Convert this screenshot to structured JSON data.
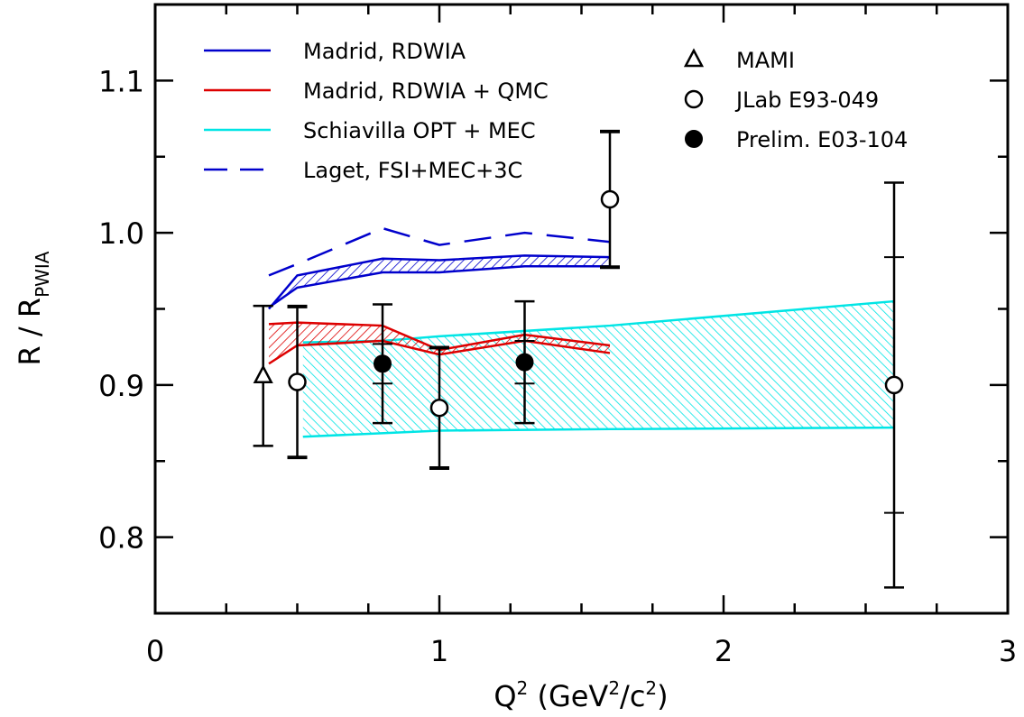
{
  "chart_data": {
    "type": "scatter",
    "xlabel": {
      "base": "Q",
      "sup": "2",
      "paren_open": " (GeV",
      "unit_sup": "2",
      "slash": "/c",
      "unit_sup2": "2",
      "paren_close": ")"
    },
    "ylabel": {
      "left": "R  /  R",
      "sub": "PWIA"
    },
    "xlim": [
      0,
      3
    ],
    "ylim": [
      0.75,
      1.15
    ],
    "x_ticks": [
      "0",
      "1",
      "2",
      "3"
    ],
    "y_ticks": [
      "0.8",
      "0.9",
      "1.0",
      "1.1"
    ],
    "legend_lines": [
      {
        "label": "Madrid,  RDWIA",
        "color": "#0000cc",
        "style": "solid"
      },
      {
        "label": "Madrid,  RDWIA + QMC",
        "color": "#dd0000",
        "style": "solid"
      },
      {
        "label": "Schiavilla  OPT + MEC",
        "color": "#00e5e5",
        "style": "solid"
      },
      {
        "label": "Laget,  FSI+MEC+3C",
        "color": "#0000cc",
        "style": "dashed"
      }
    ],
    "legend_markers": [
      {
        "label": "MAMI",
        "marker": "triangle-open"
      },
      {
        "label": "JLab  E93-049",
        "marker": "circle-open"
      },
      {
        "label": "Prelim.  E03-104",
        "marker": "circle-filled"
      }
    ],
    "bands": [
      {
        "name": "Madrid, RDWIA",
        "color": "#0000cc",
        "upper": [
          [
            0.4,
            0.95
          ],
          [
            0.5,
            0.972
          ],
          [
            0.8,
            0.983
          ],
          [
            1.0,
            0.982
          ],
          [
            1.3,
            0.985
          ],
          [
            1.6,
            0.984
          ]
        ],
        "lower": [
          [
            0.4,
            0.951
          ],
          [
            0.5,
            0.964
          ],
          [
            0.8,
            0.974
          ],
          [
            1.0,
            0.974
          ],
          [
            1.3,
            0.978
          ],
          [
            1.6,
            0.978
          ]
        ]
      },
      {
        "name": "Madrid, RDWIA + QMC",
        "color": "#dd0000",
        "upper": [
          [
            0.4,
            0.94
          ],
          [
            0.5,
            0.941
          ],
          [
            0.8,
            0.939
          ],
          [
            1.0,
            0.923
          ],
          [
            1.3,
            0.933
          ],
          [
            1.6,
            0.926
          ]
        ],
        "lower": [
          [
            0.4,
            0.914
          ],
          [
            0.5,
            0.926
          ],
          [
            0.8,
            0.929
          ],
          [
            1.0,
            0.92
          ],
          [
            1.3,
            0.929
          ],
          [
            1.6,
            0.921
          ]
        ]
      },
      {
        "name": "Schiavilla OPT + MEC",
        "color": "#00e5e5",
        "upper": [
          [
            0.52,
            0.928
          ],
          [
            0.8,
            0.929
          ],
          [
            1.0,
            0.932
          ],
          [
            1.6,
            0.939
          ],
          [
            2.6,
            0.955
          ]
        ],
        "lower": [
          [
            0.52,
            0.866
          ],
          [
            1.0,
            0.87
          ],
          [
            1.6,
            0.871
          ],
          [
            2.6,
            0.872
          ]
        ]
      }
    ],
    "dashed_line": {
      "name": "Laget, FSI+MEC+3C",
      "color": "#0000cc",
      "points": [
        [
          0.4,
          0.972
        ],
        [
          0.52,
          0.981
        ],
        [
          0.8,
          1.003
        ],
        [
          1.0,
          0.992
        ],
        [
          1.3,
          1.0
        ],
        [
          1.6,
          0.994
        ]
      ]
    },
    "points": [
      {
        "series": "MAMI",
        "marker": "triangle-open",
        "x": 0.38,
        "y": 0.906,
        "err_total": 0.046,
        "err_stat": 0.046
      },
      {
        "series": "JLab E93-049",
        "marker": "circle-open",
        "x": 0.5,
        "y": 0.902,
        "err_total": 0.05,
        "err_stat": 0.049
      },
      {
        "series": "JLab E93-049",
        "marker": "circle-open",
        "x": 1.0,
        "y": 0.885,
        "err_total": 0.04,
        "err_stat": 0.039
      },
      {
        "series": "JLab E93-049",
        "marker": "circle-open",
        "x": 1.6,
        "y": 1.022,
        "err_total": 0.045,
        "err_stat": 0.044
      },
      {
        "series": "JLab E93-049",
        "marker": "circle-open",
        "x": 2.6,
        "y": 0.9,
        "err_total": 0.133,
        "err_stat": 0.084
      },
      {
        "series": "Prelim. E03-104",
        "marker": "circle-filled",
        "x": 0.8,
        "y": 0.914,
        "err_total": 0.039,
        "err_stat": 0.013
      },
      {
        "series": "Prelim. E03-104",
        "marker": "circle-filled",
        "x": 1.3,
        "y": 0.915,
        "err_total": 0.04,
        "err_stat": 0.014
      }
    ]
  }
}
